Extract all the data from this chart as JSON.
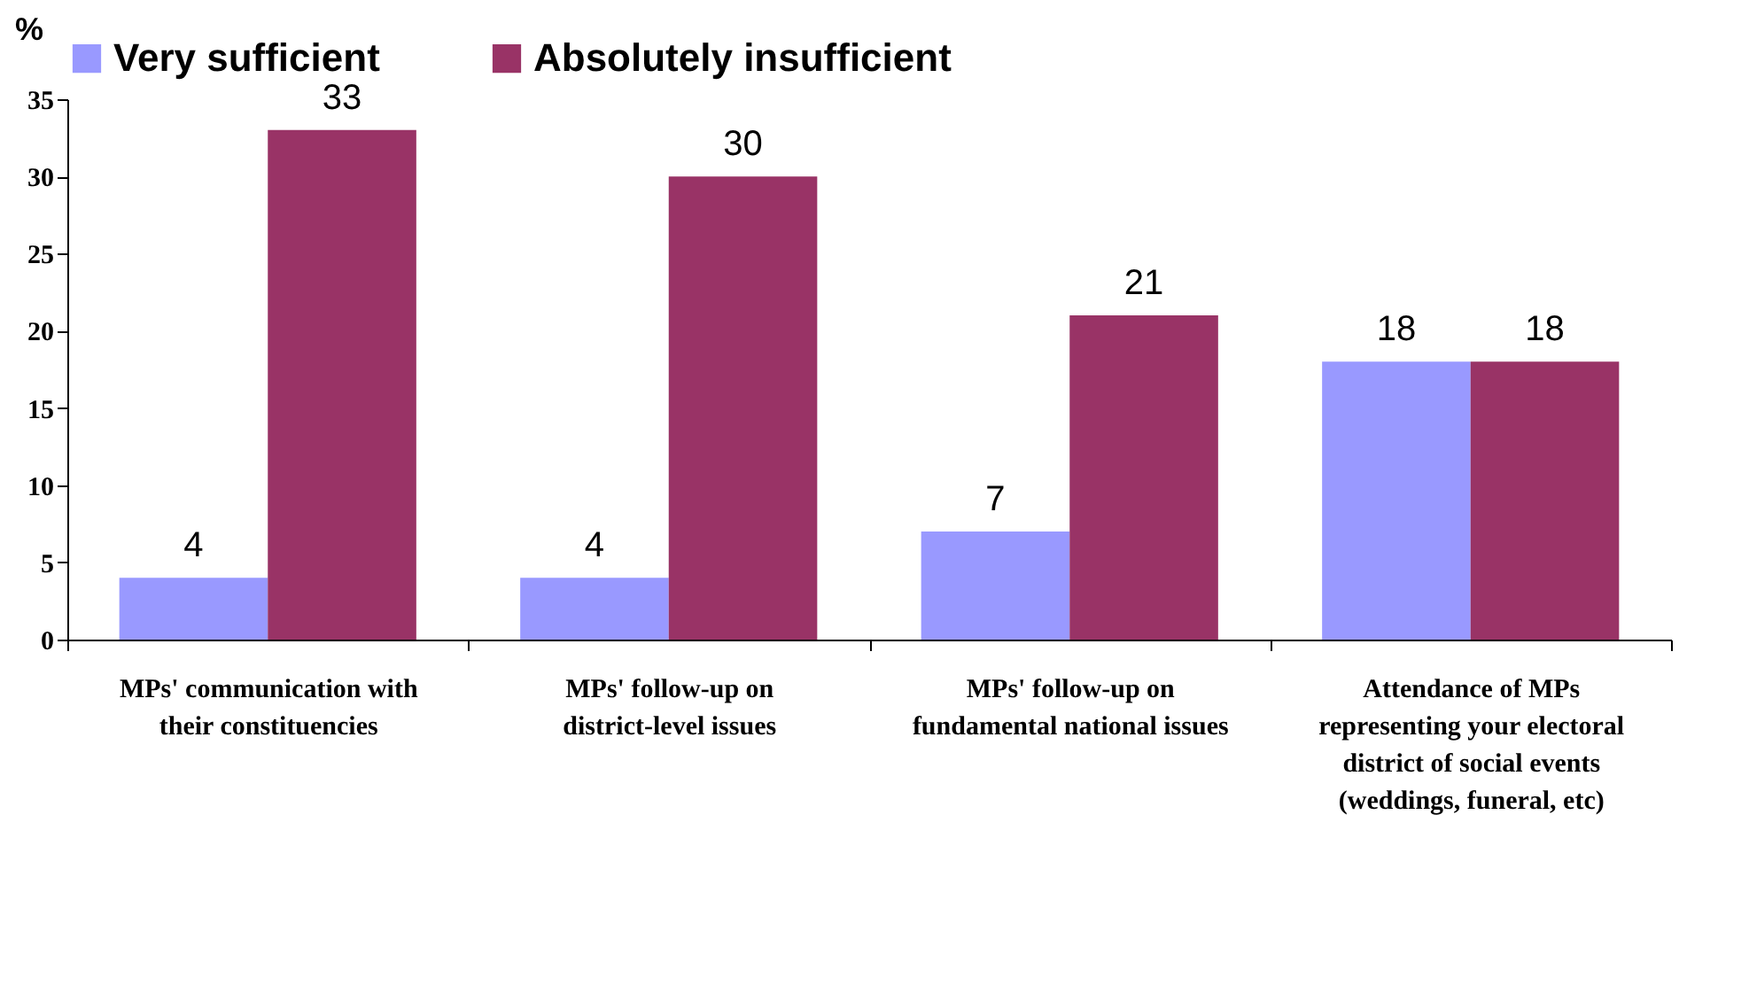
{
  "chart_data": {
    "type": "bar",
    "ylabel": "%",
    "categories": [
      "MPs' communication with their constituencies",
      "MPs' follow-up on district-level issues",
      "MPs' follow-up on fundamental national issues",
      "Attendance of MPs representing your electoral district of social events (weddings, funeral, etc)"
    ],
    "series": [
      {
        "name": "Very sufficient",
        "color": "#9999ff",
        "values": [
          4,
          4,
          7,
          18
        ]
      },
      {
        "name": "Absolutely insufficient",
        "color": "#993366",
        "values": [
          33,
          30,
          21,
          18
        ]
      }
    ],
    "ylim": [
      0,
      35
    ],
    "yticks": [
      0,
      5,
      10,
      15,
      20,
      25,
      30,
      35
    ],
    "grid": false,
    "legend": "top",
    "data_labels": true
  }
}
